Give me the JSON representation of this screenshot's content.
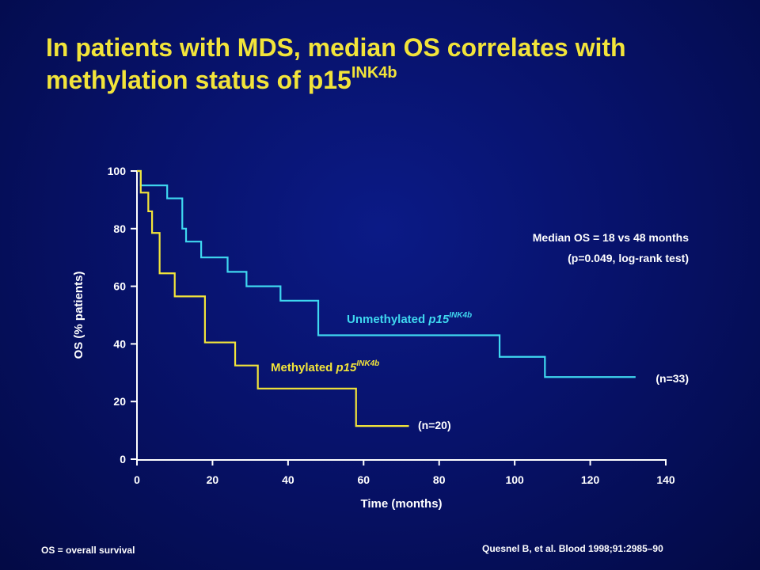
{
  "slide": {
    "title_main": "In patients with MDS, median OS correlates with methylation status of p15",
    "title_sup": "INK4b",
    "footnote_left": "OS = overall survival",
    "footnote_right": "Quesnel B, et al. Blood 1998;91:2985–90"
  },
  "chart_data": {
    "type": "line",
    "subtype": "kaplan-meier-step",
    "xlabel": "Time (months)",
    "ylabel": "OS (% patients)",
    "xlim": [
      0,
      140
    ],
    "ylim": [
      0,
      100
    ],
    "x_ticks": [
      "0",
      "20",
      "40",
      "60",
      "80",
      "100",
      "120",
      "140"
    ],
    "y_ticks": [
      "0",
      "20",
      "40",
      "60",
      "80",
      "100"
    ],
    "grid": false,
    "annotation_line1": "Median OS = 18 vs 48 months",
    "annotation_line2": "(p=0.049, log-rank test)",
    "series": [
      {
        "label_main": "Unmethylated ",
        "label_italic": "p15",
        "label_sup": "INK4b",
        "n_label": "(n=33)",
        "color": "#3fd8f0",
        "x": [
          0,
          1,
          8,
          12,
          13,
          17,
          24,
          29,
          38,
          48,
          96,
          108,
          132
        ],
        "y": [
          100,
          95,
          90.5,
          80,
          75.5,
          70,
          65,
          60,
          55,
          43,
          35.5,
          28.5,
          28.5
        ]
      },
      {
        "label_main": "Methylated ",
        "label_italic": "p15",
        "label_sup": "INK4b",
        "n_label": "(n=20)",
        "color": "#f2e43a",
        "x": [
          0,
          1,
          3,
          4,
          6,
          10,
          18,
          26,
          32,
          58,
          72
        ],
        "y": [
          100,
          92.5,
          86,
          78.5,
          64.5,
          56.5,
          40.5,
          32.5,
          24.5,
          11.5,
          11.5
        ]
      }
    ]
  }
}
